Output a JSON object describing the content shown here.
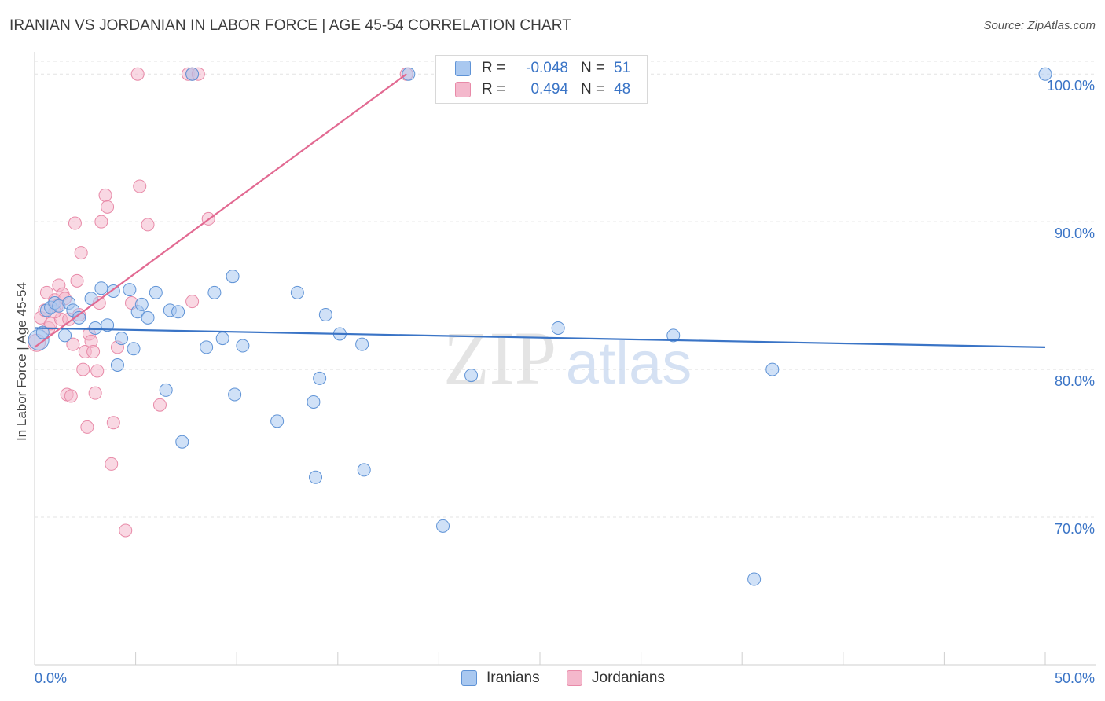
{
  "title": "IRANIAN VS JORDANIAN IN LABOR FORCE | AGE 45-54 CORRELATION CHART",
  "source": "Source: ZipAtlas.com",
  "watermark": {
    "zip": "ZIP",
    "atlas": "atlas"
  },
  "legend": {
    "rows": [
      {
        "r_label": "R =",
        "r_value": "-0.048",
        "n_label": "N =",
        "n_value": "51"
      },
      {
        "r_label": "R =",
        "r_value": "0.494",
        "n_label": "N =",
        "n_value": "48"
      }
    ]
  },
  "bottom_legend": {
    "iranians": "Iranians",
    "jordanians": "Jordanians"
  },
  "colors": {
    "blue_fill": "#a9c8f0",
    "blue_stroke": "#5f93d6",
    "blue_line": "#3a74c6",
    "pink_fill": "#f4b8cc",
    "pink_stroke": "#e88aa8",
    "pink_line": "#e26a92",
    "tick_text": "#3a74c6",
    "grid": "#e3e3e3"
  },
  "chart_data": {
    "type": "scatter",
    "title": "IRANIAN VS JORDANIAN IN LABOR FORCE | AGE 45-54 CORRELATION CHART",
    "xlabel": "",
    "ylabel": "In Labor Force | Age 45-54",
    "xlim": [
      0,
      50
    ],
    "ylim": [
      60,
      101.5
    ],
    "x_tick_labels": [
      "0.0%",
      "50.0%"
    ],
    "y_ticks": [
      70,
      80,
      90,
      100
    ],
    "y_tick_labels": [
      "70.0%",
      "80.0%",
      "90.0%",
      "100.0%"
    ],
    "series": [
      {
        "name": "Iranians",
        "r": -0.048,
        "n": 51,
        "trend": {
          "x": [
            0,
            50
          ],
          "y": [
            82.8,
            81.5
          ]
        },
        "points": [
          [
            0.2,
            82.0
          ],
          [
            0.4,
            82.5
          ],
          [
            0.6,
            84.0
          ],
          [
            0.8,
            84.2
          ],
          [
            1.0,
            84.5
          ],
          [
            1.2,
            84.3
          ],
          [
            1.5,
            82.3
          ],
          [
            1.7,
            84.5
          ],
          [
            1.9,
            84.0
          ],
          [
            2.2,
            83.5
          ],
          [
            2.8,
            84.8
          ],
          [
            3.0,
            82.8
          ],
          [
            3.3,
            85.5
          ],
          [
            3.6,
            83.0
          ],
          [
            3.9,
            85.3
          ],
          [
            4.1,
            80.3
          ],
          [
            4.3,
            82.1
          ],
          [
            4.7,
            85.4
          ],
          [
            4.9,
            81.4
          ],
          [
            5.1,
            83.9
          ],
          [
            5.3,
            84.4
          ],
          [
            5.6,
            83.5
          ],
          [
            6.0,
            85.2
          ],
          [
            6.5,
            78.6
          ],
          [
            6.7,
            84.0
          ],
          [
            7.1,
            83.9
          ],
          [
            7.3,
            75.1
          ],
          [
            7.8,
            100.0
          ],
          [
            8.5,
            81.5
          ],
          [
            8.9,
            85.2
          ],
          [
            9.3,
            82.1
          ],
          [
            10.3,
            81.6
          ],
          [
            9.8,
            86.3
          ],
          [
            9.9,
            78.3
          ],
          [
            12.0,
            76.5
          ],
          [
            13.0,
            85.2
          ],
          [
            13.8,
            77.8
          ],
          [
            14.1,
            79.4
          ],
          [
            14.4,
            83.7
          ],
          [
            15.1,
            82.4
          ],
          [
            13.9,
            72.7
          ],
          [
            16.2,
            81.7
          ],
          [
            16.3,
            73.2
          ],
          [
            18.5,
            100.0
          ],
          [
            20.2,
            69.4
          ],
          [
            21.6,
            79.6
          ],
          [
            25.9,
            82.8
          ],
          [
            31.6,
            82.3
          ],
          [
            35.6,
            65.8
          ],
          [
            36.5,
            80.0
          ],
          [
            50.0,
            100.0
          ]
        ]
      },
      {
        "name": "Jordanians",
        "r": 0.494,
        "n": 48,
        "trend": {
          "x": [
            0,
            18.4
          ],
          "y": [
            81.5,
            100.0
          ]
        },
        "points": [
          [
            0.1,
            81.8
          ],
          [
            0.3,
            83.5
          ],
          [
            0.5,
            84.0
          ],
          [
            0.6,
            85.2
          ],
          [
            0.7,
            82.8
          ],
          [
            0.8,
            83.1
          ],
          [
            1.0,
            84.7
          ],
          [
            1.1,
            84.3
          ],
          [
            1.2,
            85.7
          ],
          [
            1.3,
            83.4
          ],
          [
            1.4,
            85.1
          ],
          [
            1.5,
            84.8
          ],
          [
            1.6,
            78.3
          ],
          [
            1.7,
            83.4
          ],
          [
            1.8,
            78.2
          ],
          [
            1.9,
            81.7
          ],
          [
            2.0,
            89.9
          ],
          [
            2.1,
            86.0
          ],
          [
            2.2,
            83.7
          ],
          [
            2.3,
            87.9
          ],
          [
            2.4,
            80.0
          ],
          [
            2.5,
            81.2
          ],
          [
            2.6,
            76.1
          ],
          [
            2.7,
            82.4
          ],
          [
            2.8,
            81.9
          ],
          [
            2.9,
            81.2
          ],
          [
            3.0,
            78.4
          ],
          [
            3.1,
            79.9
          ],
          [
            3.2,
            84.5
          ],
          [
            3.3,
            90.0
          ],
          [
            3.5,
            91.8
          ],
          [
            3.6,
            91.0
          ],
          [
            3.8,
            73.6
          ],
          [
            3.9,
            76.4
          ],
          [
            4.1,
            81.5
          ],
          [
            4.5,
            69.1
          ],
          [
            4.8,
            84.5
          ],
          [
            5.1,
            100.0
          ],
          [
            5.2,
            92.4
          ],
          [
            5.6,
            89.8
          ],
          [
            6.2,
            77.6
          ],
          [
            7.6,
            100.0
          ],
          [
            7.8,
            100.0
          ],
          [
            8.1,
            100.0
          ],
          [
            7.8,
            84.6
          ],
          [
            8.6,
            90.2
          ],
          [
            18.4,
            100.0
          ],
          [
            1.0,
            83.9
          ]
        ]
      }
    ]
  }
}
